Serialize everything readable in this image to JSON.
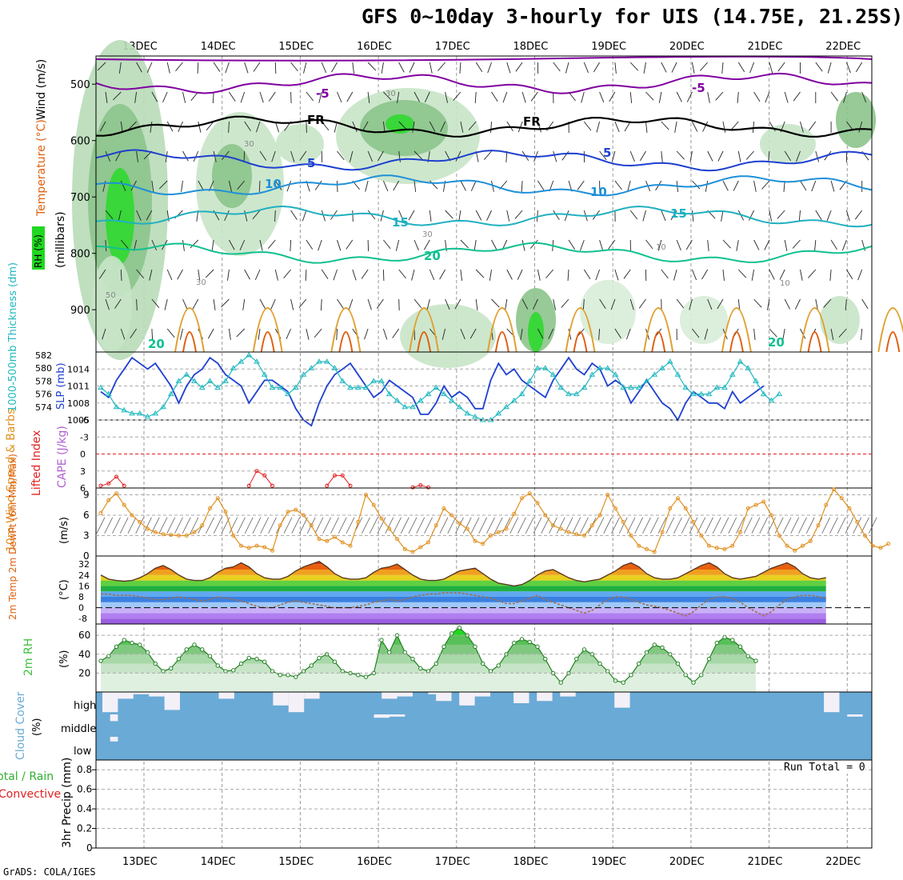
{
  "title": "GFS 0~10day 3-hourly for UIS (14.75E, 21.25S)",
  "footer": "GrADS: COLA/IGES",
  "run_total": "Run Total = 0",
  "colors": {
    "purple": "#8000a0",
    "black": "#000000",
    "blue": "#1e40d0",
    "lightblue": "#1e90d8",
    "teal": "#20b0c0",
    "green": "#10c090",
    "orange": "#e0a030",
    "darkorange": "#e06010",
    "magenta": "#e0108c",
    "rh_green": "#20d820",
    "cloud": "#6aaad6",
    "cyan_line": "#20b8c0",
    "wind_orange": "#e09020",
    "rh2m_green": "#40c040",
    "lifted_red": "#e02020",
    "cape_purple": "#b060d0"
  },
  "chart_data": [
    {
      "id": "upper",
      "type": "contour",
      "x_ticks": [
        "13DEC",
        "14DEC",
        "15DEC",
        "16DEC",
        "17DEC",
        "18DEC",
        "19DEC",
        "20DEC",
        "21DEC",
        "22DEC"
      ],
      "ylabel": "(millibars)",
      "ytick_labels": [
        "500",
        "600",
        "700",
        "800",
        "900"
      ],
      "ylim": [
        450,
        975
      ],
      "side_labels": {
        "wind": "Wind (m/s)",
        "temperature": "Temperature (°C)",
        "rh": "RH (%)"
      },
      "contour_labels": [
        "-5",
        "-5",
        "FR",
        "FR",
        "5",
        "5",
        "10",
        "10",
        "15",
        "15",
        "20",
        "20",
        "20",
        "10",
        "30",
        "30",
        "30",
        "50",
        "10",
        "30"
      ],
      "isotherm_levels": [
        {
          "label": "-5",
          "mb": 498
        },
        {
          "label": "FR",
          "mb": 575
        },
        {
          "label": "5",
          "mb": 635
        },
        {
          "label": "10",
          "mb": 680
        },
        {
          "label": "15",
          "mb": 735
        },
        {
          "label": "20",
          "mb": 800
        }
      ]
    },
    {
      "id": "thickness_slp",
      "type": "line",
      "ylabel_left": "1000-500mb Thickness (dm)",
      "ylabel_right": "SLP (mb)",
      "thickness_ticks": [
        "574",
        "576",
        "578",
        "580",
        "582"
      ],
      "slp_ticks": [
        "1005",
        "1008",
        "1011",
        "1014"
      ],
      "thickness_range": [
        572,
        582
      ],
      "slp_range": [
        1005,
        1017
      ],
      "slp": [
        1010,
        1009,
        1012,
        1014,
        1016,
        1015,
        1014,
        1015,
        1013,
        1011,
        1008,
        1011,
        1013,
        1014,
        1016,
        1015,
        1013,
        1012,
        1011,
        1008,
        1010,
        1012,
        1012,
        1011,
        1010,
        1007,
        1005,
        1004,
        1008,
        1011,
        1013,
        1014,
        1015,
        1013,
        1011,
        1009,
        1010,
        1012,
        1011,
        1010,
        1009,
        1006,
        1006,
        1008,
        1011,
        1009,
        1010,
        1009,
        1007,
        1007,
        1012,
        1015,
        1013,
        1014,
        1012,
        1011,
        1010,
        1009,
        1012,
        1014,
        1016,
        1014,
        1013,
        1015,
        1014,
        1011,
        1012,
        1011,
        1008,
        1010,
        1012,
        1010,
        1008,
        1007,
        1005,
        1008,
        1010,
        1009,
        1008,
        1008,
        1007,
        1010,
        1008,
        1009,
        1010,
        1011
      ],
      "thickness": [
        577,
        576,
        574,
        573.5,
        573,
        573,
        572.5,
        573,
        574,
        576,
        578,
        579,
        578,
        577,
        578,
        577,
        578,
        580,
        581,
        582,
        581,
        579,
        577,
        577,
        576,
        577,
        579,
        580,
        581,
        581,
        580,
        578,
        577,
        577,
        577,
        578,
        578,
        576,
        575,
        574,
        574,
        575,
        576,
        577,
        576,
        575,
        574,
        573,
        572.5,
        572,
        572,
        573,
        574,
        575,
        576,
        578,
        580,
        580,
        579,
        577,
        576,
        576,
        577,
        579,
        580,
        580,
        579,
        577,
        577,
        577,
        578,
        579,
        580,
        581,
        579,
        577,
        576,
        576,
        576,
        577,
        577,
        579,
        581,
        580,
        578,
        576,
        575,
        576
      ]
    },
    {
      "id": "lifted_cape",
      "type": "line",
      "ylabel_left": "Lifted Index",
      "ylabel_right": "CAPE (J/kg)",
      "ticks": [
        "-6",
        "-3",
        "0",
        "3",
        "6"
      ],
      "ylim": [
        -6,
        6
      ],
      "segments": [
        {
          "x_start": 0,
          "values": [
            5.6,
            5.2,
            4.0,
            5.6
          ]
        },
        {
          "x_start": 19,
          "values": [
            5.6,
            3.0,
            3.8,
            5.6
          ]
        },
        {
          "x_start": 29,
          "values": [
            5.6,
            3.8,
            3.8,
            5.6
          ]
        },
        {
          "x_start": 40,
          "values": [
            5.9,
            5.5,
            5.9
          ]
        }
      ]
    },
    {
      "id": "wind10m",
      "type": "line",
      "ylabel_left": "10m Wind Speed & Barbs",
      "unit": "(m/s)",
      "ticks": [
        "0",
        "3",
        "6",
        "9"
      ],
      "ylim": [
        0,
        10
      ],
      "values": [
        6.3,
        8.2,
        9.2,
        7.5,
        6.0,
        5.0,
        4.0,
        3.5,
        3.2,
        3.1,
        3.0,
        3.0,
        3.5,
        4.5,
        7.0,
        8.5,
        6.5,
        3.0,
        1.5,
        1.2,
        1.5,
        1.3,
        0.8,
        4.5,
        6.5,
        6.8,
        6.0,
        4.5,
        2.5,
        2.2,
        2.8,
        2.0,
        1.5,
        5.0,
        9.0,
        7.5,
        5.5,
        4.0,
        2.5,
        1.0,
        0.6,
        1.3,
        2.0,
        4.5,
        7.0,
        6.0,
        4.8,
        4.0,
        2.2,
        1.8,
        3.0,
        3.5,
        4.0,
        6.2,
        8.5,
        9.2,
        7.8,
        6.0,
        4.5,
        4.0,
        3.5,
        3.2,
        3.0,
        4.5,
        6.0,
        9.0,
        7.0,
        5.0,
        3.0,
        1.5,
        1.0,
        0.6,
        3.5,
        7.0,
        8.5,
        7.0,
        5.0,
        3.0,
        1.5,
        1.2,
        1.0,
        1.5,
        3.5,
        7.0,
        7.5,
        8.0,
        6.0,
        3.0,
        1.5,
        0.8,
        1.5,
        2.2,
        4.5,
        7.5,
        9.8,
        8.5,
        7.0,
        5.0,
        3.0,
        1.5,
        1.2,
        1.8
      ]
    },
    {
      "id": "temp2m",
      "type": "area",
      "ylabel_left": "2m Temp 2m DewPt (6hr Min/Max)",
      "unit": "(°C)",
      "ticks": [
        "-8",
        "0",
        "8",
        "16",
        "24",
        "32"
      ],
      "ylim": [
        -12,
        38
      ],
      "temp": [
        24,
        21,
        20,
        19.5,
        20,
        22,
        25,
        29,
        31,
        28,
        24,
        21,
        20,
        20,
        22,
        26,
        29,
        30,
        33,
        30,
        25,
        22,
        21,
        21,
        23,
        27,
        30,
        32,
        34,
        30,
        25,
        22,
        21,
        21,
        22,
        26,
        29,
        30,
        32,
        28,
        24,
        21,
        20,
        20,
        21,
        24,
        27,
        28,
        29,
        25,
        21,
        18,
        17,
        16,
        17,
        20,
        24,
        27,
        28,
        25,
        22,
        20,
        19,
        20,
        21,
        24,
        27,
        31,
        33,
        30,
        25,
        22,
        21,
        21,
        22,
        25,
        28,
        31,
        33,
        30,
        25,
        22,
        21,
        22,
        23,
        26,
        29,
        31,
        33,
        30,
        25,
        22,
        21,
        22
      ],
      "dewpoint": [
        10,
        10,
        9,
        9,
        9,
        8,
        7,
        6,
        6,
        7,
        8,
        7,
        6,
        5,
        6,
        8,
        7,
        6,
        5,
        3,
        1,
        0,
        0,
        2,
        4,
        5,
        4,
        3,
        2,
        1,
        0,
        0,
        0,
        1,
        2,
        4,
        5,
        6,
        5,
        6,
        8,
        9,
        10,
        10,
        11,
        11,
        11,
        10,
        9,
        8,
        7,
        5,
        3,
        3,
        5,
        7,
        9,
        6,
        4,
        2,
        0,
        -2,
        -4,
        -2,
        2,
        6,
        8,
        8,
        6,
        4,
        2,
        1,
        0,
        -2,
        -4,
        -6,
        -3,
        2,
        6,
        8,
        8,
        7,
        4,
        0,
        -3,
        -6,
        -3,
        2,
        6,
        8,
        9,
        9,
        8,
        7
      ]
    },
    {
      "id": "rh2m",
      "type": "area",
      "ylabel_left": "2m RH",
      "unit": "(%)",
      "ticks": [
        "20",
        "40",
        "60"
      ],
      "ylim": [
        0,
        72
      ],
      "values": [
        33,
        38,
        48,
        55,
        52,
        50,
        42,
        30,
        22,
        25,
        35,
        45,
        50,
        45,
        38,
        28,
        22,
        23,
        30,
        36,
        35,
        32,
        22,
        18,
        18,
        16,
        22,
        28,
        36,
        40,
        32,
        22,
        20,
        18,
        16,
        20,
        55,
        42,
        60,
        42,
        35,
        25,
        22,
        30,
        48,
        62,
        68,
        60,
        48,
        30,
        22,
        28,
        40,
        52,
        56,
        53,
        48,
        35,
        20,
        10,
        20,
        35,
        45,
        40,
        30,
        22,
        12,
        10,
        18,
        30,
        42,
        50,
        47,
        40,
        30,
        18,
        10,
        18,
        35,
        52,
        58,
        55,
        48,
        38,
        33
      ]
    },
    {
      "id": "cloud",
      "type": "bar",
      "ylabel_left": "Cloud Cover",
      "unit": "(%)",
      "levels": [
        "high",
        "middle",
        "low"
      ],
      "high_gaps": [
        [
          0,
          2,
          0.9
        ],
        [
          2,
          4,
          0.3
        ],
        [
          4,
          6,
          0.1
        ],
        [
          6,
          8,
          0.2
        ],
        [
          8,
          10,
          0.8
        ],
        [
          15,
          17,
          0.3
        ],
        [
          22,
          24,
          0.6
        ],
        [
          24,
          26,
          0.9
        ],
        [
          26,
          28,
          0.3
        ],
        [
          36,
          38,
          0.3
        ],
        [
          38,
          40,
          0.2
        ],
        [
          42,
          44,
          0.1
        ],
        [
          43,
          45,
          0.4
        ],
        [
          46,
          48,
          0.6
        ],
        [
          48,
          50,
          0.2
        ],
        [
          53,
          55,
          0.5
        ],
        [
          56,
          58,
          0.4
        ],
        [
          59,
          61,
          0.2
        ],
        [
          66,
          68,
          0.7
        ],
        [
          93,
          95,
          0.9
        ]
      ],
      "middle_gaps": [
        [
          1,
          2,
          0.3
        ],
        [
          35,
          37,
          0.15
        ],
        [
          37,
          39,
          0.1
        ],
        [
          96,
          98,
          0.1
        ]
      ],
      "low_gaps": [
        [
          1,
          2,
          0.2
        ]
      ]
    },
    {
      "id": "precip",
      "type": "bar",
      "ylabel_left": "Total / Rain Convective",
      "ylabel_right": "3hr Precip (mm)",
      "ticks": [
        "0",
        "0.2",
        "0.4",
        "0.6",
        "0.8"
      ],
      "ylim": [
        0,
        0.9
      ],
      "values": [],
      "x_ticks": [
        "13DEC",
        "14DEC",
        "15DEC",
        "16DEC",
        "17DEC",
        "18DEC",
        "19DEC",
        "20DEC",
        "21DEC",
        "22DEC"
      ]
    }
  ]
}
